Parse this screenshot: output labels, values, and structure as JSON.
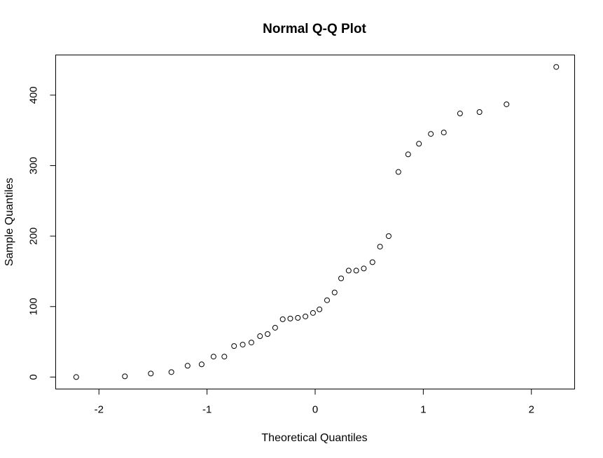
{
  "chart_data": {
    "type": "scatter",
    "title": "Normal Q-Q Plot",
    "xlabel": "Theoretical Quantiles",
    "ylabel": "Sample Quantiles",
    "xlim": [
      -2.4,
      2.4
    ],
    "ylim": [
      -17,
      457
    ],
    "xticks": [
      -2,
      -1,
      0,
      1,
      2
    ],
    "xtick_labels": [
      "-2",
      "-1",
      "0",
      "1",
      "2"
    ],
    "yticks": [
      0,
      100,
      200,
      300,
      400
    ],
    "ytick_labels": [
      "0",
      "100",
      "200",
      "300",
      "400"
    ],
    "grid": false,
    "legend": "none",
    "marker": "open-circle",
    "points": [
      {
        "x": -2.21,
        "y": 0
      },
      {
        "x": -1.76,
        "y": 1
      },
      {
        "x": -1.52,
        "y": 5
      },
      {
        "x": -1.33,
        "y": 7
      },
      {
        "x": -1.18,
        "y": 16
      },
      {
        "x": -1.05,
        "y": 18
      },
      {
        "x": -0.94,
        "y": 29
      },
      {
        "x": -0.84,
        "y": 29
      },
      {
        "x": -0.75,
        "y": 44
      },
      {
        "x": -0.67,
        "y": 46
      },
      {
        "x": -0.59,
        "y": 49
      },
      {
        "x": -0.51,
        "y": 58
      },
      {
        "x": -0.44,
        "y": 61
      },
      {
        "x": -0.37,
        "y": 70
      },
      {
        "x": -0.3,
        "y": 82
      },
      {
        "x": -0.23,
        "y": 83
      },
      {
        "x": -0.16,
        "y": 84
      },
      {
        "x": -0.09,
        "y": 86
      },
      {
        "x": -0.02,
        "y": 91
      },
      {
        "x": 0.04,
        "y": 96
      },
      {
        "x": 0.11,
        "y": 109
      },
      {
        "x": 0.18,
        "y": 120
      },
      {
        "x": 0.24,
        "y": 140
      },
      {
        "x": 0.31,
        "y": 151
      },
      {
        "x": 0.38,
        "y": 151
      },
      {
        "x": 0.45,
        "y": 154
      },
      {
        "x": 0.53,
        "y": 163
      },
      {
        "x": 0.6,
        "y": 185
      },
      {
        "x": 0.68,
        "y": 200
      },
      {
        "x": 0.77,
        "y": 291
      },
      {
        "x": 0.86,
        "y": 316
      },
      {
        "x": 0.96,
        "y": 331
      },
      {
        "x": 1.07,
        "y": 345
      },
      {
        "x": 1.19,
        "y": 347
      },
      {
        "x": 1.34,
        "y": 374
      },
      {
        "x": 1.52,
        "y": 376
      },
      {
        "x": 1.77,
        "y": 387
      },
      {
        "x": 2.23,
        "y": 440
      }
    ]
  }
}
